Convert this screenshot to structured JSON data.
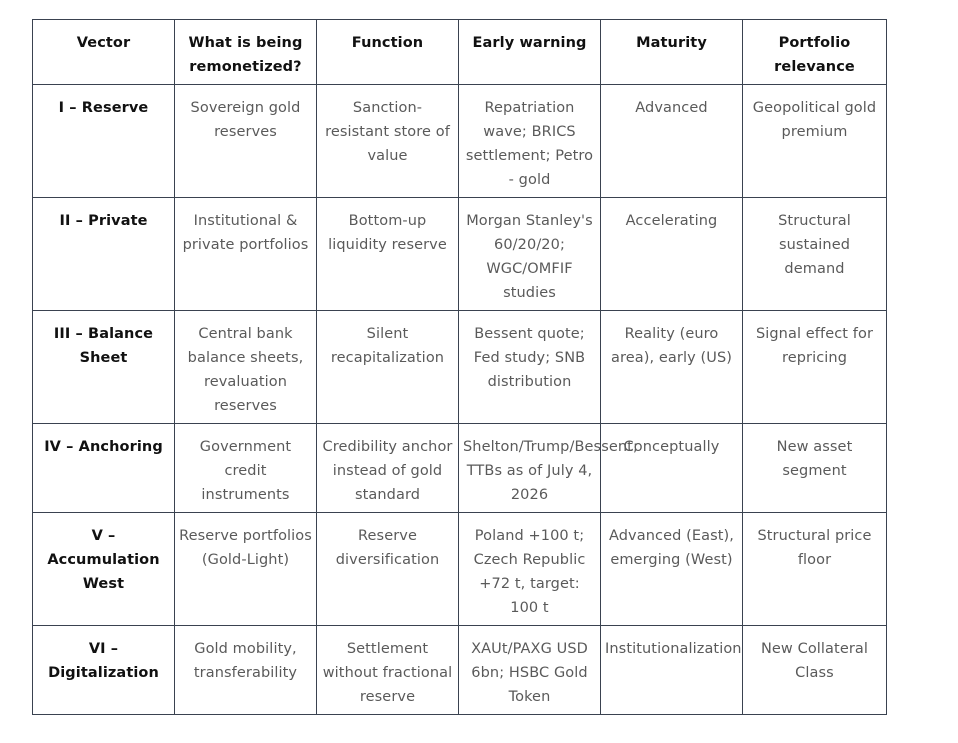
{
  "table": {
    "headers": [
      "Vector",
      "What is being remonetized?",
      "Function",
      "Early warning",
      "Maturity",
      "Portfolio relevance"
    ],
    "rows": [
      [
        "I – Reserve",
        "Sovereign gold reserves",
        "Sanction-resistant store of value",
        "Repatriation wave; BRICS settlement; Petro - gold",
        "Advanced",
        "Geopolitical gold premium"
      ],
      [
        "II – Private",
        "Institutional & private portfolios",
        "Bottom-up liquidity reserve",
        "Morgan Stanley's 60/20/20; WGC/OMFIF studies",
        "Accelerating",
        "Structural sustained demand"
      ],
      [
        "III – Balance Sheet",
        "Central bank balance sheets, revaluation reserves",
        "Silent recapitalization",
        "Bessent quote; Fed study; SNB distribution",
        "Reality (euro area), early (US)",
        "Signal effect for repricing"
      ],
      [
        "IV – Anchoring",
        "Government credit instruments",
        "Credibility anchor instead of gold standard",
        "Shelton/Trump/Bessent; TTBs as of July 4, 2026",
        "Conceptually",
        "New asset segment"
      ],
      [
        "V – Accumulation West",
        "Reserve portfolios (Gold-Light)",
        "Reserve diversification",
        "Poland +100 t; Czech Republic +72 t, target: 100 t",
        "Advanced (East), emerging (West)",
        "Structural price floor"
      ],
      [
        "VI – Digitalization",
        "Gold mobility, transferability",
        "Settlement without fractional reserve",
        "XAUt/PAXG USD 6bn; HSBC Gold Token",
        "Institutionalization",
        "New Collateral Class"
      ]
    ]
  }
}
